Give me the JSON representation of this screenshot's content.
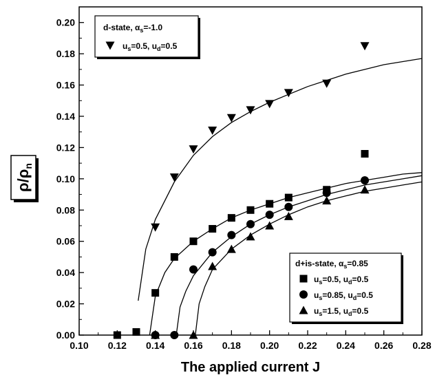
{
  "chart_data": {
    "type": "scatter",
    "xlabel": "The applied current J",
    "ylabel": "ρ/ρ_n",
    "xlim": [
      0.1,
      0.28
    ],
    "ylim": [
      0.0,
      0.21
    ],
    "x_ticks": [
      "0.10",
      "0.12",
      "0.14",
      "0.16",
      "0.18",
      "0.20",
      "0.22",
      "0.24",
      "0.26",
      "0.28"
    ],
    "y_ticks": [
      "0.00",
      "0.02",
      "0.04",
      "0.06",
      "0.08",
      "0.10",
      "0.12",
      "0.14",
      "0.16",
      "0.18",
      "0.20"
    ],
    "legends": [
      {
        "title": "d-state, α_s=-1.0",
        "position": "top-left",
        "entries": [
          {
            "label": "u_s=0.5, u_d=0.5",
            "marker": "triangle-down"
          }
        ]
      },
      {
        "title": "d+is-state, α_s=0.85",
        "position": "bottom-right",
        "entries": [
          {
            "label": "u_s=0.5, u_d=0.5",
            "marker": "square"
          },
          {
            "label": "u_s=0.85, u_d=0.5",
            "marker": "circle"
          },
          {
            "label": "u_s=1.5, u_d=0.5",
            "marker": "triangle-up"
          }
        ]
      }
    ],
    "series": [
      {
        "name": "d-state u_s=0.5, u_d=0.5",
        "marker": "triangle-down",
        "x": [
          0.14,
          0.15,
          0.16,
          0.17,
          0.18,
          0.19,
          0.2,
          0.21,
          0.23,
          0.25
        ],
        "y": [
          0.069,
          0.101,
          0.119,
          0.131,
          0.139,
          0.144,
          0.148,
          0.155,
          0.161,
          0.185
        ],
        "fit": {
          "x0": 0.131,
          "x": [
            0.131,
            0.135,
            0.14,
            0.15,
            0.16,
            0.17,
            0.18,
            0.19,
            0.2,
            0.21,
            0.22,
            0.23,
            0.24,
            0.25,
            0.26,
            0.27,
            0.28
          ],
          "y": [
            0.022,
            0.055,
            0.074,
            0.098,
            0.115,
            0.127,
            0.136,
            0.143,
            0.149,
            0.154,
            0.159,
            0.163,
            0.167,
            0.17,
            0.173,
            0.175,
            0.177
          ]
        }
      },
      {
        "name": "d+is-state u_s=0.5, u_d=0.5",
        "marker": "square",
        "x": [
          0.12,
          0.13,
          0.14,
          0.15,
          0.16,
          0.17,
          0.18,
          0.19,
          0.2,
          0.21,
          0.23,
          0.25
        ],
        "y": [
          0.0,
          0.002,
          0.027,
          0.05,
          0.06,
          0.068,
          0.075,
          0.08,
          0.084,
          0.088,
          0.093,
          0.116
        ],
        "fit": {
          "x": [
            0.137,
            0.14,
            0.145,
            0.15,
            0.16,
            0.17,
            0.18,
            0.19,
            0.2,
            0.21,
            0.22,
            0.23,
            0.24,
            0.25,
            0.26,
            0.27,
            0.28
          ],
          "y": [
            0.0,
            0.025,
            0.04,
            0.049,
            0.06,
            0.068,
            0.075,
            0.08,
            0.084,
            0.088,
            0.091,
            0.094,
            0.097,
            0.099,
            0.101,
            0.103,
            0.104
          ]
        }
      },
      {
        "name": "d+is-state u_s=0.85, u_d=0.5",
        "marker": "circle",
        "x": [
          0.14,
          0.15,
          0.16,
          0.17,
          0.18,
          0.19,
          0.2,
          0.21,
          0.23,
          0.25
        ],
        "y": [
          0.0,
          0.0,
          0.042,
          0.053,
          0.064,
          0.071,
          0.077,
          0.082,
          0.091,
          0.099
        ],
        "fit": {
          "x": [
            0.151,
            0.153,
            0.156,
            0.16,
            0.17,
            0.18,
            0.19,
            0.2,
            0.21,
            0.22,
            0.23,
            0.24,
            0.25,
            0.26,
            0.27,
            0.28
          ],
          "y": [
            0.0,
            0.018,
            0.028,
            0.038,
            0.053,
            0.063,
            0.071,
            0.077,
            0.082,
            0.086,
            0.09,
            0.093,
            0.096,
            0.098,
            0.1,
            0.102
          ]
        }
      },
      {
        "name": "d+is-state u_s=1.5, u_d=0.5",
        "marker": "triangle-up",
        "x": [
          0.14,
          0.16,
          0.17,
          0.18,
          0.19,
          0.2,
          0.21,
          0.23,
          0.25
        ],
        "y": [
          0.0,
          0.0,
          0.044,
          0.055,
          0.063,
          0.07,
          0.076,
          0.086,
          0.093
        ],
        "fit": {
          "x": [
            0.161,
            0.163,
            0.166,
            0.17,
            0.18,
            0.19,
            0.2,
            0.21,
            0.22,
            0.23,
            0.24,
            0.25,
            0.26,
            0.27,
            0.28
          ],
          "y": [
            0.0,
            0.02,
            0.031,
            0.042,
            0.055,
            0.064,
            0.071,
            0.077,
            0.082,
            0.086,
            0.089,
            0.092,
            0.094,
            0.096,
            0.098
          ]
        }
      }
    ]
  }
}
